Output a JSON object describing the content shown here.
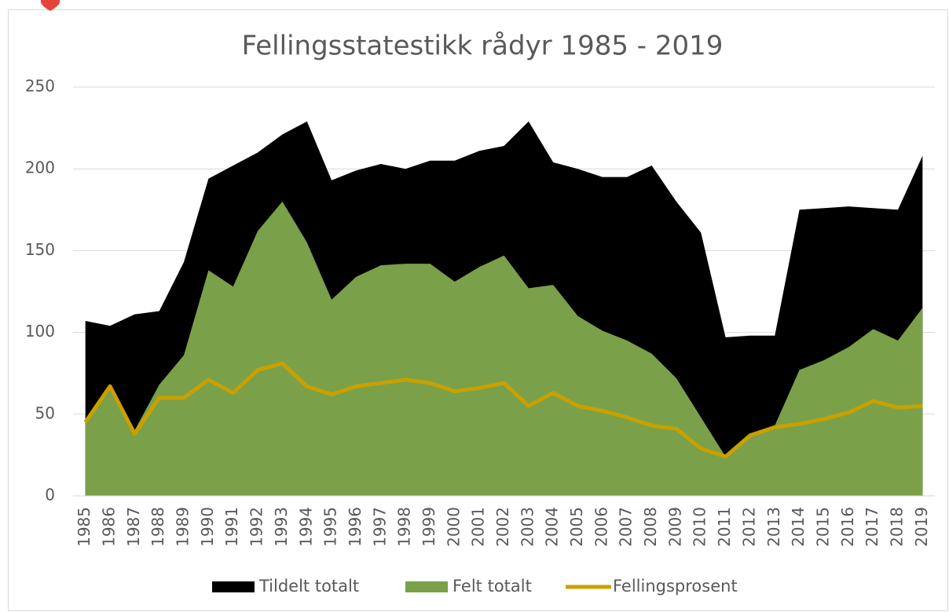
{
  "chart_data": {
    "type": "area",
    "title": "Fellingsstatestikk rådyr 1985 - 2019",
    "categories": [
      "1985",
      "1986",
      "1987",
      "1988",
      "1989",
      "1990",
      "1991",
      "1992",
      "1993",
      "1994",
      "1995",
      "1996",
      "1997",
      "1998",
      "1999",
      "2000",
      "2001",
      "2002",
      "2003",
      "2004",
      "2005",
      "2006",
      "2007",
      "2008",
      "2009",
      "2010",
      "2011",
      "2012",
      "2013",
      "2014",
      "2015",
      "2016",
      "2017",
      "2018",
      "2019"
    ],
    "series": [
      {
        "name": "Tildelt totalt",
        "color": "#000000",
        "kind": "area",
        "values": [
          107,
          104,
          111,
          113,
          143,
          194,
          202,
          210,
          221,
          229,
          193,
          199,
          203,
          200,
          205,
          205,
          211,
          214,
          229,
          204,
          200,
          195,
          195,
          202,
          180,
          161,
          97,
          98,
          98,
          175,
          176,
          177,
          176,
          175,
          208
        ]
      },
      {
        "name": "Felt totalt",
        "color": "#7aa04a",
        "kind": "area",
        "values": [
          45,
          68,
          40,
          68,
          86,
          138,
          128,
          162,
          180,
          155,
          120,
          134,
          141,
          142,
          142,
          131,
          140,
          147,
          127,
          129,
          110,
          101,
          95,
          87,
          72,
          48,
          24,
          37,
          43,
          77,
          83,
          91,
          102,
          95,
          115
        ]
      },
      {
        "name": "Fellingsprosent",
        "color": "#c9a000",
        "kind": "line",
        "values": [
          45,
          67,
          38,
          60,
          60,
          71,
          63,
          77,
          81,
          67,
          62,
          67,
          69,
          71,
          69,
          64,
          66,
          69,
          55,
          63,
          55,
          52,
          48,
          43,
          41,
          29,
          24,
          37,
          42,
          44,
          47,
          51,
          58,
          54,
          55
        ]
      }
    ],
    "ylim": [
      0,
      250
    ],
    "yticks": [
      0,
      50,
      100,
      150,
      200,
      250
    ],
    "grid": true,
    "legend": "bottom"
  }
}
